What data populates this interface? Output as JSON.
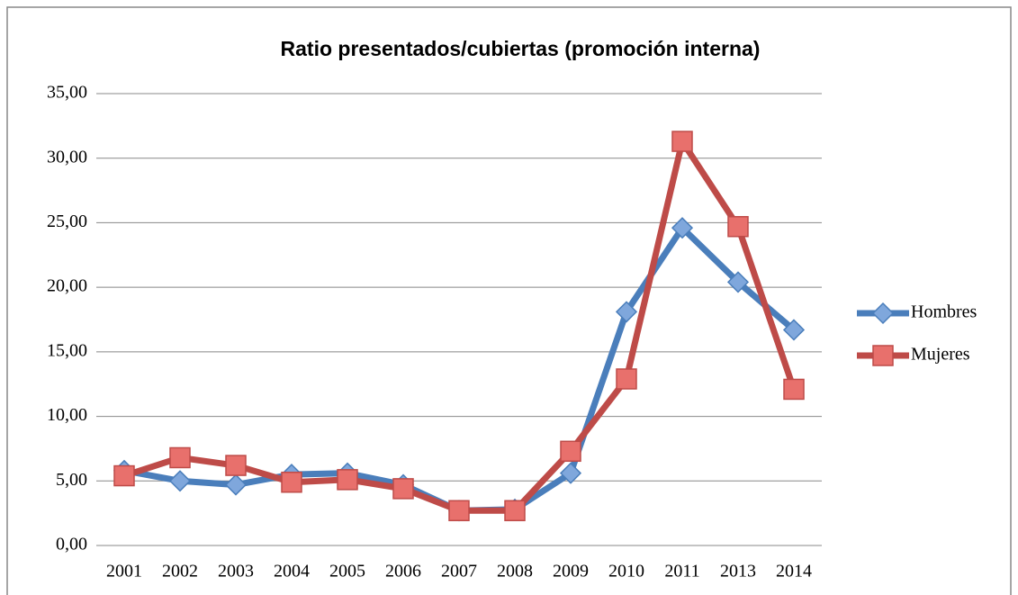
{
  "chart_data": {
    "type": "line",
    "title": "Ratio presentados/cubiertas (promoción interna)",
    "categories": [
      "2001",
      "2002",
      "2003",
      "2004",
      "2005",
      "2006",
      "2007",
      "2008",
      "2009",
      "2010",
      "2011",
      "2013",
      "2014"
    ],
    "series": [
      {
        "name": "Hombres",
        "color": "#4a7ebb",
        "marker": "diamond",
        "marker_color": "#7fa7dc",
        "values": [
          5.8,
          5.0,
          4.7,
          5.5,
          5.6,
          4.7,
          2.7,
          2.8,
          5.6,
          18.1,
          24.6,
          20.4,
          16.7
        ]
      },
      {
        "name": "Mujeres",
        "color": "#be4b48",
        "marker": "square",
        "marker_color": "#e8706c",
        "values": [
          5.4,
          6.8,
          6.2,
          4.9,
          5.1,
          4.4,
          2.7,
          2.7,
          7.3,
          12.9,
          31.3,
          24.7,
          12.1
        ]
      }
    ],
    "ylim": [
      0,
      35
    ],
    "yticks": [
      {
        "value": 0,
        "label": "0,00"
      },
      {
        "value": 5,
        "label": "5,00"
      },
      {
        "value": 10,
        "label": "10,00"
      },
      {
        "value": 15,
        "label": "15,00"
      },
      {
        "value": 20,
        "label": "20,00"
      },
      {
        "value": 25,
        "label": "25,00"
      },
      {
        "value": 30,
        "label": "30,00"
      },
      {
        "value": 35,
        "label": "35,00"
      }
    ],
    "grid": true,
    "legend": "right"
  }
}
